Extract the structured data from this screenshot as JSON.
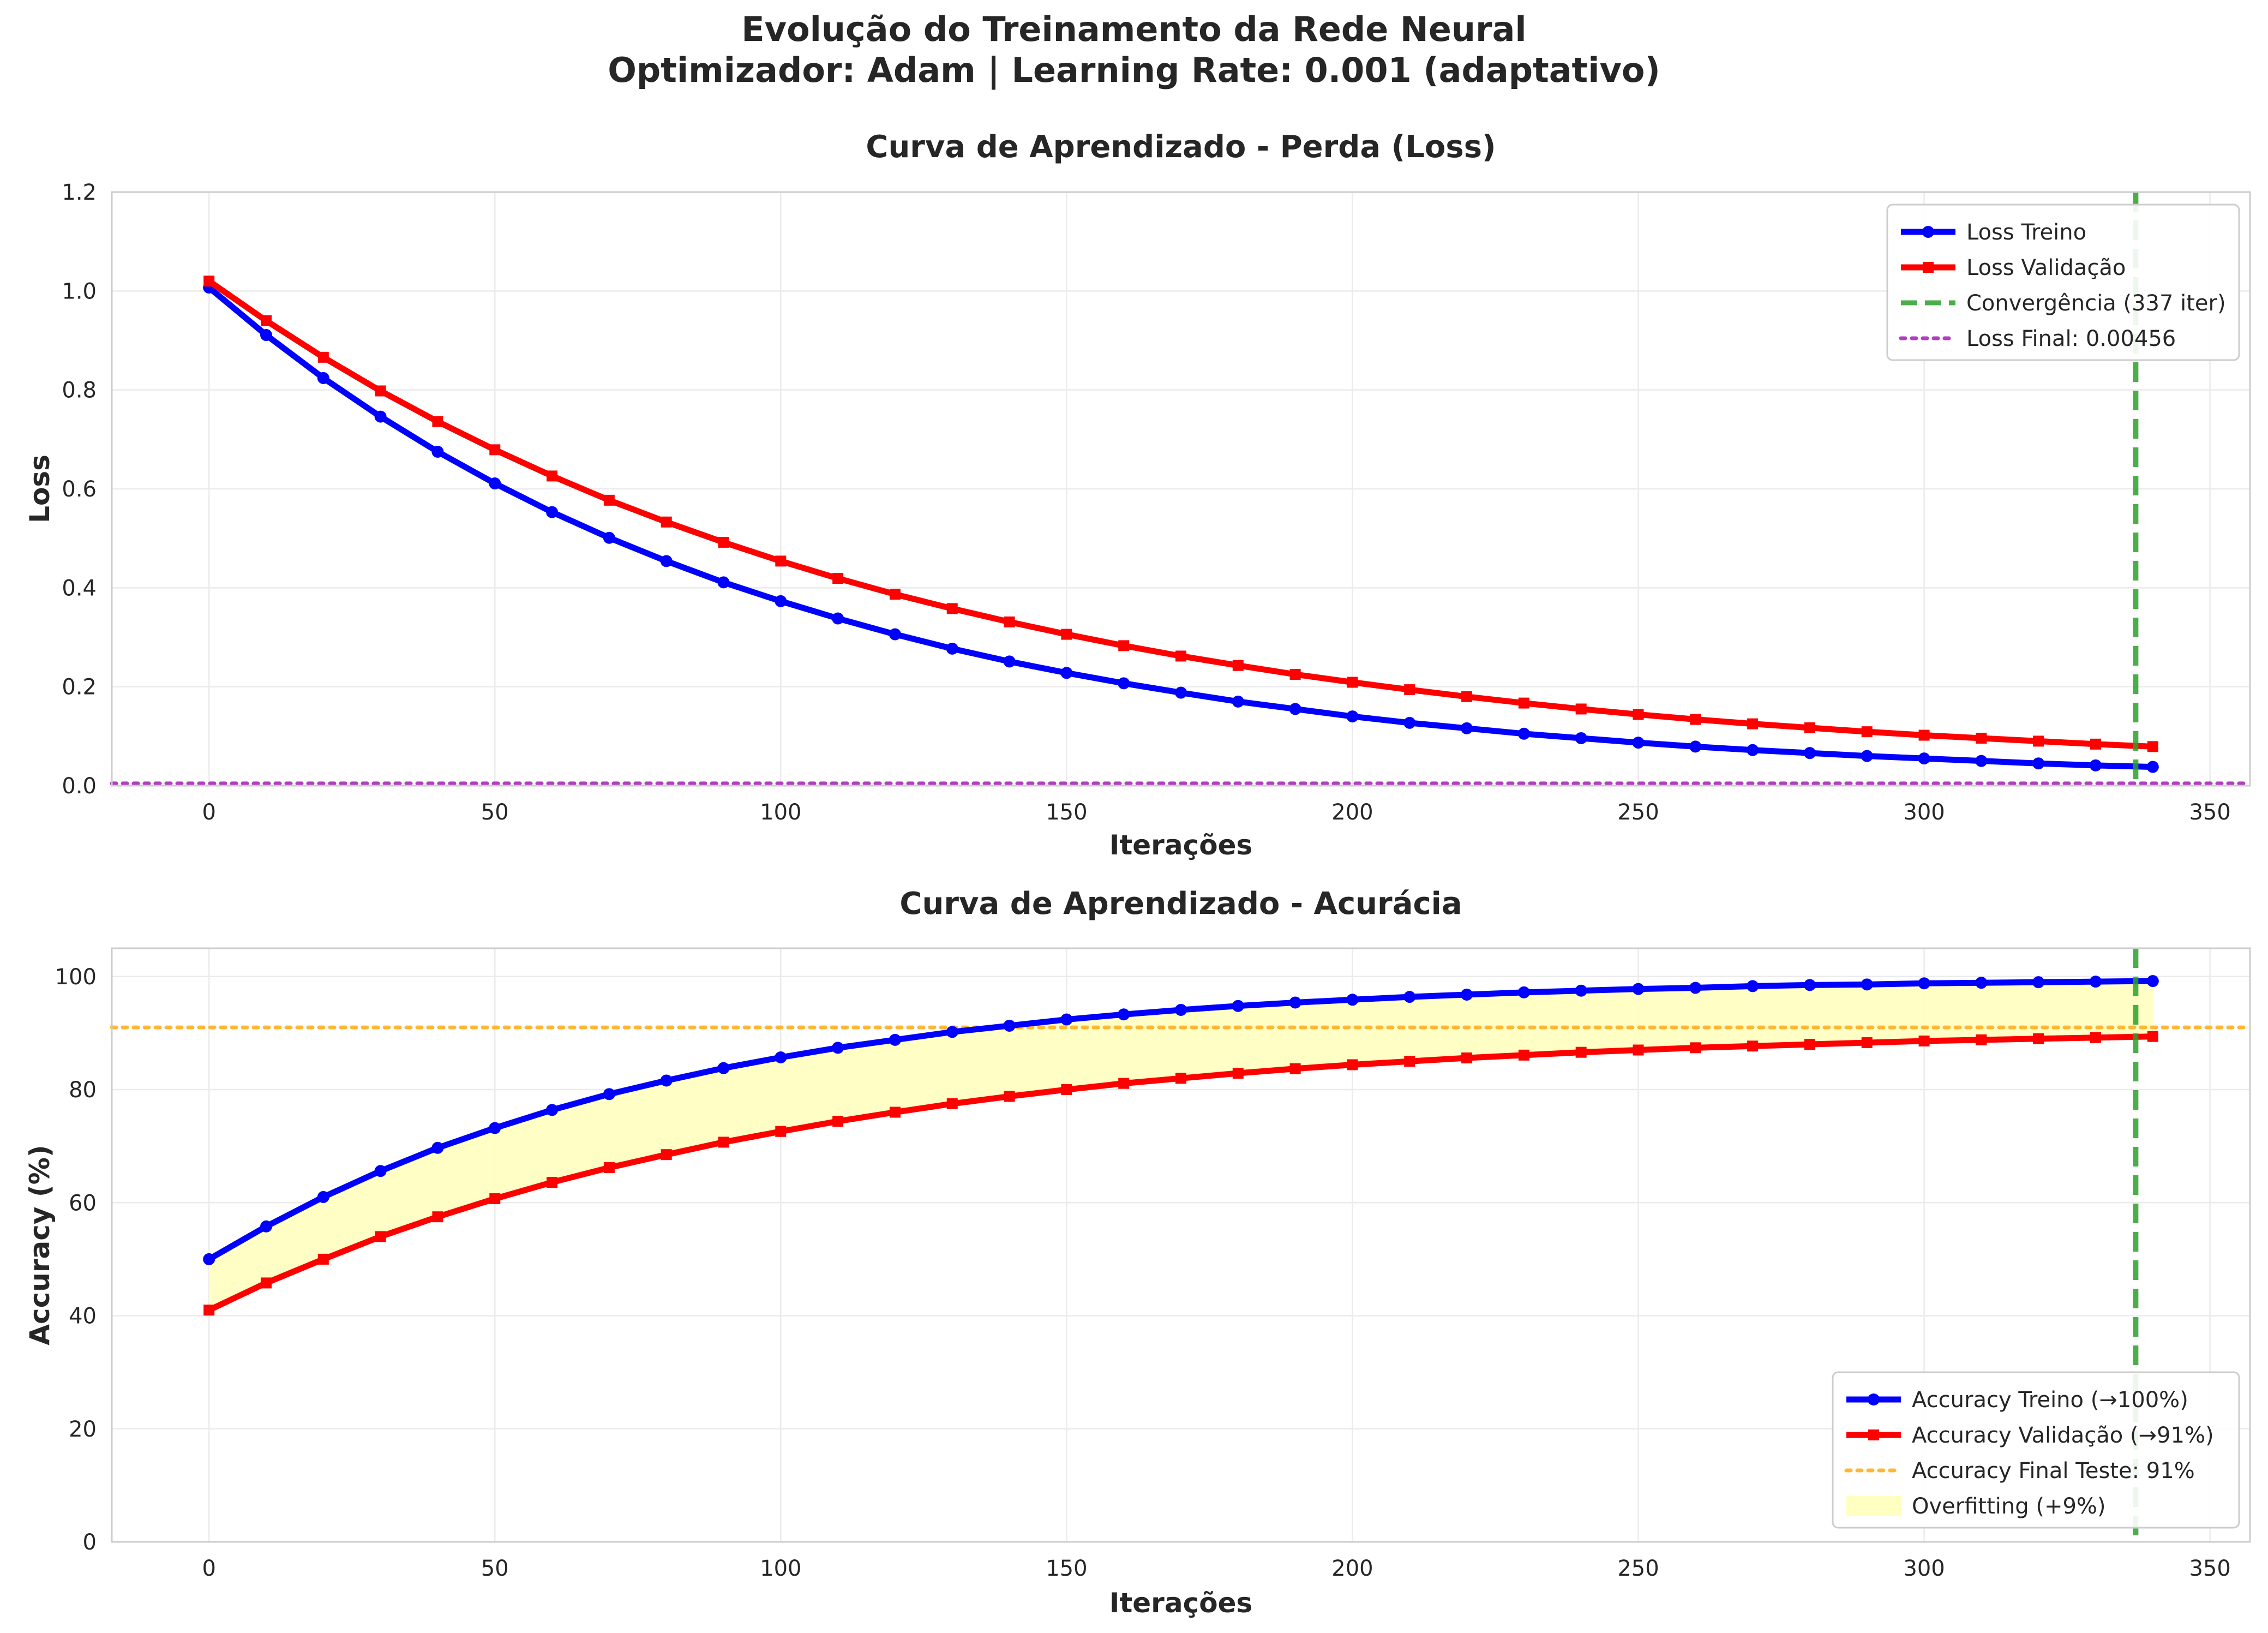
{
  "title_line1": "Evolução do Treinamento da Rede Neural",
  "title_line2": "Optimizador: Adam | Learning Rate: 0.001 (adaptativo)",
  "colors": {
    "train": "#0000ff",
    "validation": "#ff0000",
    "convergence": "#2ca02c",
    "final_loss": "#b03fbf",
    "final_accuracy": "#ffb733",
    "overfit_fill": "#ffffc2",
    "grid": "#ebebeb"
  },
  "chart_data": [
    {
      "type": "line",
      "title": "Curva de Aprendizado - Perda (Loss)",
      "xlabel": "Iterações",
      "ylabel": "Loss",
      "xlim": [
        -17,
        357
      ],
      "ylim": [
        0,
        1.2
      ],
      "xticks": [
        "0",
        "50",
        "100",
        "150",
        "200",
        "250",
        "300",
        "350"
      ],
      "yticks": [
        "0.0",
        "0.2",
        "0.4",
        "0.6",
        "0.8",
        "1.0",
        "1.2"
      ],
      "grid": true,
      "legend_position": "top-right",
      "x": [
        0,
        10,
        20,
        30,
        40,
        50,
        60,
        70,
        80,
        90,
        100,
        110,
        120,
        130,
        140,
        150,
        160,
        170,
        180,
        190,
        200,
        210,
        220,
        230,
        240,
        250,
        260,
        270,
        280,
        290,
        300,
        310,
        320,
        330,
        340
      ],
      "series": [
        {
          "name": "Loss Treino",
          "color": "#0000ff",
          "marker": "circle",
          "values": [
            1.007,
            0.911,
            0.824,
            0.746,
            0.675,
            0.611,
            0.553,
            0.501,
            0.454,
            0.411,
            0.373,
            0.338,
            0.306,
            0.277,
            0.251,
            0.228,
            0.207,
            0.188,
            0.17,
            0.155,
            0.14,
            0.127,
            0.116,
            0.105,
            0.096,
            0.087,
            0.079,
            0.072,
            0.066,
            0.06,
            0.055,
            0.05,
            0.045,
            0.041,
            0.038
          ]
        },
        {
          "name": "Loss Validação",
          "color": "#ff0000",
          "marker": "square",
          "values": [
            1.02,
            0.94,
            0.866,
            0.798,
            0.736,
            0.679,
            0.626,
            0.577,
            0.533,
            0.492,
            0.454,
            0.419,
            0.387,
            0.358,
            0.331,
            0.306,
            0.283,
            0.262,
            0.243,
            0.225,
            0.209,
            0.194,
            0.18,
            0.167,
            0.155,
            0.144,
            0.134,
            0.125,
            0.117,
            0.109,
            0.102,
            0.096,
            0.09,
            0.084,
            0.079
          ]
        }
      ],
      "annotations": [
        {
          "type": "vline",
          "x": 337,
          "label": "Convergência (337 iter)",
          "style": "dashed",
          "color": "#2ca02c"
        },
        {
          "type": "hline",
          "y": 0.00456,
          "label": "Loss Final: 0.00456",
          "style": "dotted",
          "color": "#b03fbf"
        }
      ]
    },
    {
      "type": "line",
      "title": "Curva de Aprendizado - Acurácia",
      "xlabel": "Iterações",
      "ylabel": "Accuracy (%)",
      "xlim": [
        -17,
        357
      ],
      "ylim": [
        0,
        105
      ],
      "xticks": [
        "0",
        "50",
        "100",
        "150",
        "200",
        "250",
        "300",
        "350"
      ],
      "yticks": [
        "0",
        "20",
        "40",
        "60",
        "80",
        "100"
      ],
      "grid": true,
      "legend_position": "bottom-right",
      "x": [
        0,
        10,
        20,
        30,
        40,
        50,
        60,
        70,
        80,
        90,
        100,
        110,
        120,
        130,
        140,
        150,
        160,
        170,
        180,
        190,
        200,
        210,
        220,
        230,
        240,
        250,
        260,
        270,
        280,
        290,
        300,
        310,
        320,
        330,
        340
      ],
      "series": [
        {
          "name": "Accuracy Treino (→100%)",
          "color": "#0000ff",
          "marker": "circle",
          "values": [
            50.0,
            55.8,
            61.0,
            65.6,
            69.7,
            73.2,
            76.4,
            79.2,
            81.6,
            83.8,
            85.7,
            87.4,
            88.8,
            90.2,
            91.3,
            92.4,
            93.3,
            94.1,
            94.8,
            95.4,
            95.9,
            96.4,
            96.8,
            97.2,
            97.5,
            97.8,
            98.0,
            98.3,
            98.5,
            98.6,
            98.8,
            98.9,
            99.0,
            99.1,
            99.2
          ]
        },
        {
          "name": "Accuracy Validação (→91%)",
          "color": "#ff0000",
          "marker": "square",
          "values": [
            41.0,
            45.8,
            50.0,
            54.0,
            57.5,
            60.7,
            63.6,
            66.2,
            68.5,
            70.7,
            72.6,
            74.4,
            76.0,
            77.5,
            78.8,
            80.0,
            81.1,
            82.0,
            82.9,
            83.7,
            84.4,
            85.0,
            85.6,
            86.1,
            86.6,
            87.0,
            87.4,
            87.7,
            88.0,
            88.3,
            88.6,
            88.8,
            89.0,
            89.2,
            89.4
          ]
        }
      ],
      "annotations": [
        {
          "type": "vline",
          "x": 337,
          "style": "dashed",
          "color": "#2ca02c"
        },
        {
          "type": "hline",
          "y": 91,
          "label": "Accuracy Final Teste: 91%",
          "style": "dotted",
          "color": "#ffb733"
        },
        {
          "type": "fill_between",
          "label": "Overfitting (+9%)",
          "color": "#ffffc2"
        }
      ]
    }
  ]
}
